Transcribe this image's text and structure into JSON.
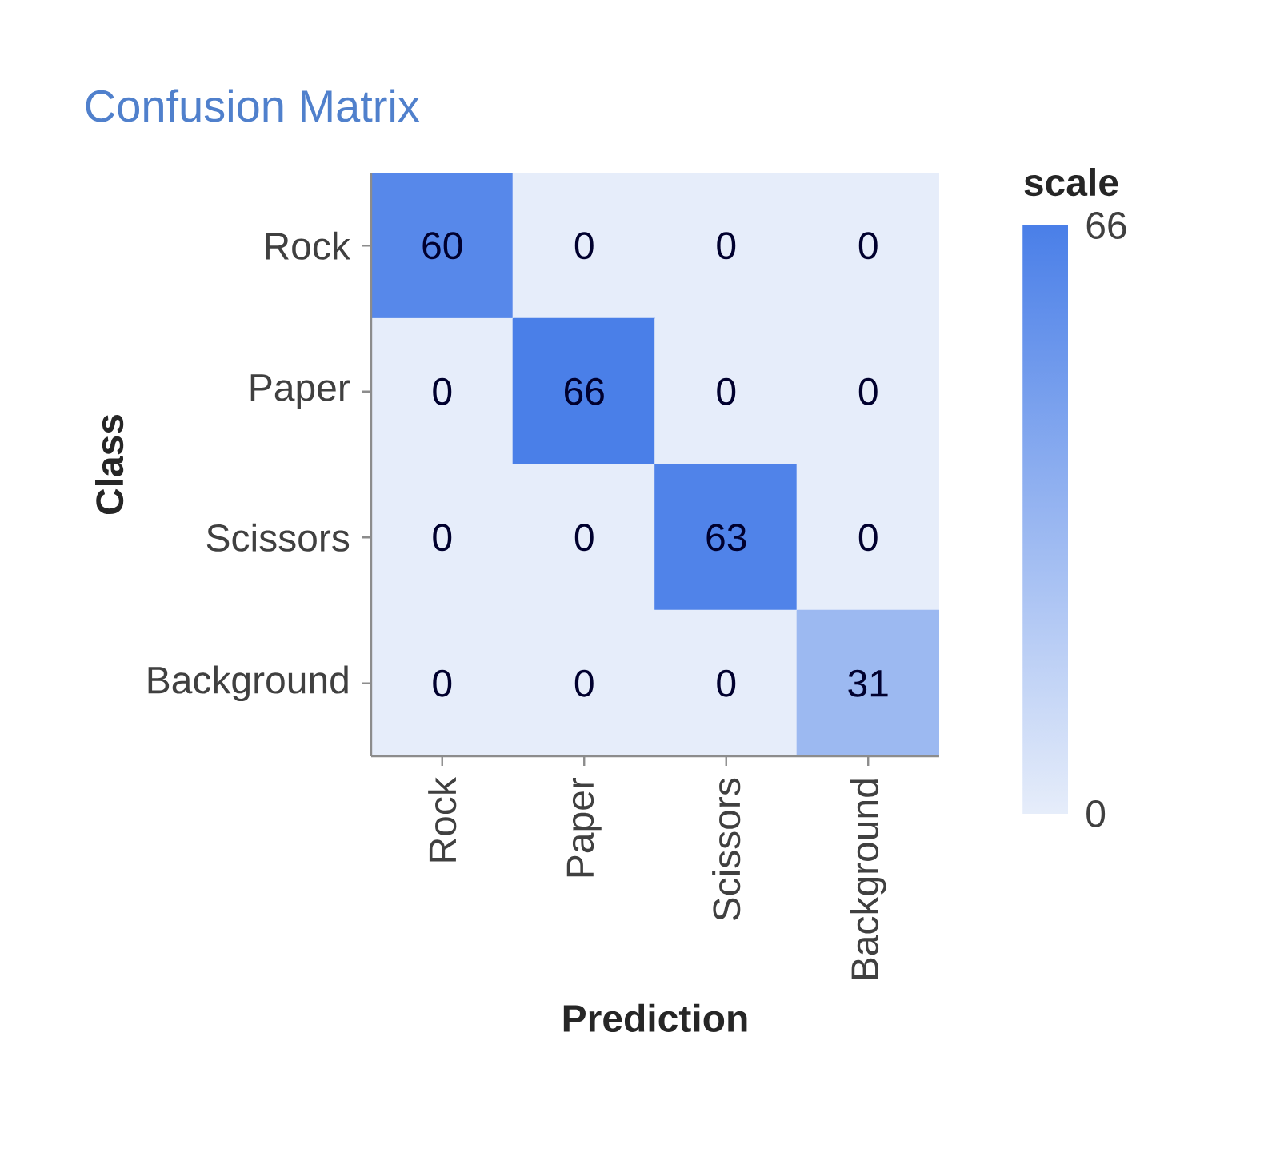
{
  "chart_data": {
    "type": "heatmap",
    "title": "Confusion Matrix",
    "xlabel": "Prediction",
    "ylabel": "Class",
    "clabel": "scale",
    "categories": [
      "Rock",
      "Paper",
      "Scissors",
      "Background"
    ],
    "y_categories": [
      "Rock",
      "Paper",
      "Scissors",
      "Background"
    ],
    "cells": [
      [
        60,
        0,
        0,
        0
      ],
      [
        0,
        66,
        0,
        0
      ],
      [
        0,
        0,
        63,
        0
      ],
      [
        0,
        0,
        0,
        31
      ]
    ],
    "clim": [
      0,
      66
    ],
    "cticks": [
      0,
      66
    ],
    "data_labels": true
  }
}
